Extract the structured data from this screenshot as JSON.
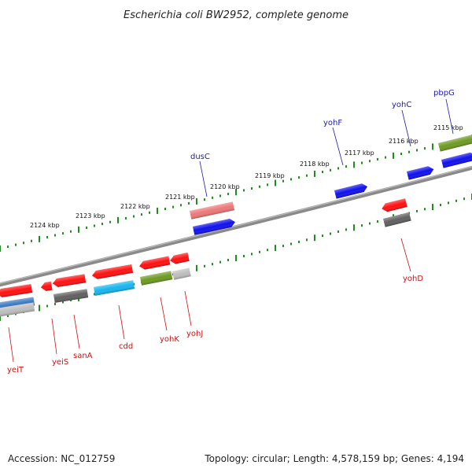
{
  "title": "Escherichia coli BW2952, complete genome",
  "footer": {
    "accession": "Accession: NC_012759",
    "topology": "Topology: circular; Length: 4,578,159 bp; Genes: 4,194"
  },
  "colors": {
    "backbone": "#8a8a8a",
    "tick": "#1e8c1e",
    "label_forward": "#1a1aa8",
    "label_reverse": "#cc1111",
    "red": "#ff1010",
    "blue": "#1010ee",
    "olive": "#6e9a22",
    "grey": "#606060",
    "lightgrey": "#bdbdbd",
    "cyan": "#16b6f0",
    "pink": "#ee7777",
    "steelblue": "#3a78c0"
  },
  "scale_labels": [
    "2115 kbp",
    "2116 kbp",
    "2117 kbp",
    "2118 kbp",
    "2119 kbp",
    "2120 kbp",
    "2121 kbp",
    "2122 kbp",
    "2123 kbp",
    "2124 kbp"
  ],
  "gene_labels": {
    "forward": [
      "pbpG",
      "yohC",
      "yohF",
      "dusC"
    ],
    "reverse": [
      "yohD",
      "yohJ",
      "yohK",
      "cdd",
      "sanA",
      "yeiS",
      "yeiT"
    ]
  }
}
